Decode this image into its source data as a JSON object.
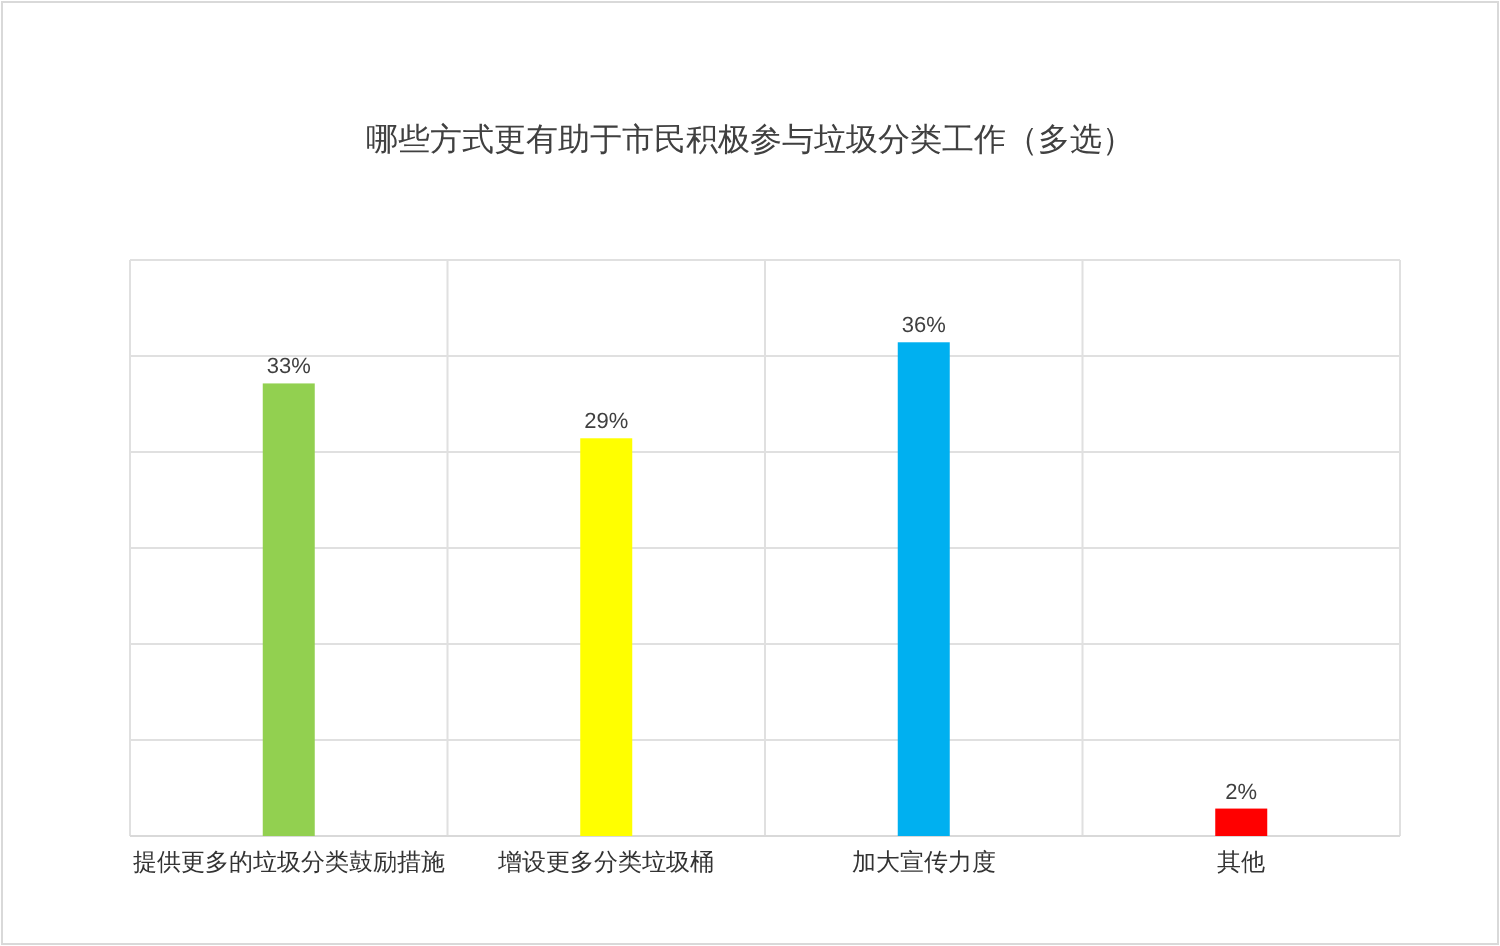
{
  "chart_data": {
    "type": "bar",
    "title": "哪些方式更有助于市民积极参与垃圾分类工作（多选）",
    "categories": [
      "提供更多的垃圾分类鼓励措施",
      "增设更多分类垃圾桶",
      "加大宣传力度",
      "其他"
    ],
    "values": [
      33,
      29,
      36,
      2
    ],
    "colors": [
      "#92d050",
      "#ffff00",
      "#00b0f0",
      "#ff0000"
    ],
    "value_labels": [
      "33%",
      "29%",
      "36%",
      "2%"
    ],
    "ylim": [
      0,
      42
    ],
    "yticks": [
      {
        "value": 0,
        "label": null
      },
      {
        "value": 7,
        "label": null
      },
      {
        "value": 14,
        "label": null
      },
      {
        "value": 21,
        "label": null
      },
      {
        "value": 28,
        "label": null
      },
      {
        "value": 35,
        "label": null
      },
      {
        "value": 42,
        "label": null
      }
    ],
    "tick_labels": "x",
    "grid": true
  }
}
